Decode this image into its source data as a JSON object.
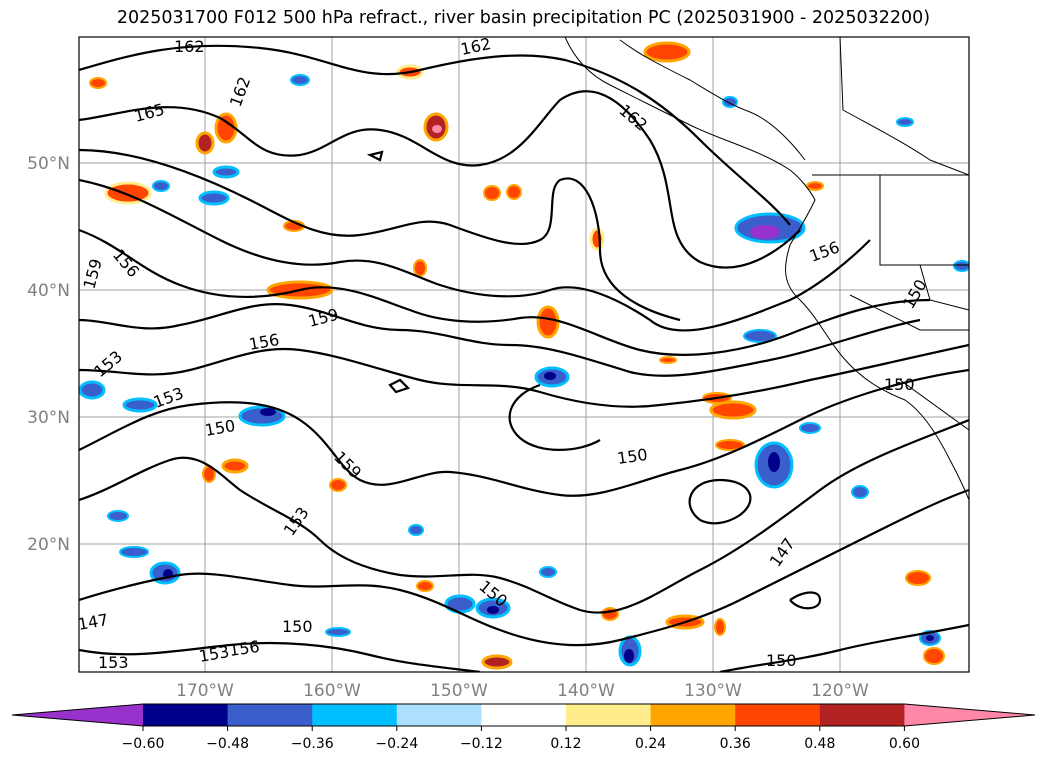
{
  "title": "2025031700 F012 500 hPa refract., river basin precipitation PC (2025031900 - 2025032200)",
  "lat_labels": [
    "50°N",
    "40°N",
    "30°N",
    "20°N"
  ],
  "lon_labels": [
    "170°W",
    "160°W",
    "150°W",
    "140°W",
    "130°W",
    "120°W"
  ],
  "contour_labels": [
    "162",
    "162",
    "162",
    "162",
    "165",
    "156",
    "159",
    "159",
    "156",
    "153",
    "153",
    "150",
    "159",
    "153",
    "150",
    "150",
    "147",
    "150",
    "156",
    "150",
    "153",
    "150",
    "147",
    "153",
    "156",
    "150"
  ],
  "colorbar": {
    "ticks": [
      "−0.60",
      "−0.48",
      "−0.36",
      "−0.24",
      "−0.12",
      "0.12",
      "0.24",
      "0.36",
      "0.48",
      "0.60"
    ],
    "colors": [
      "#9932CC",
      "#00008B",
      "#3A5FCD",
      "#00BFFF",
      "#ADDFFF",
      "#FFFFFF",
      "#FFEC8B",
      "#FFA500",
      "#FF4500",
      "#B22222",
      "#FF88A8"
    ]
  }
}
